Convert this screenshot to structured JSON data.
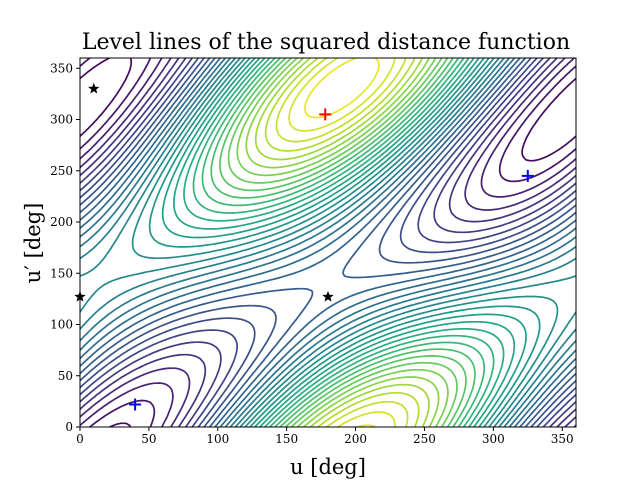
{
  "chart_data": {
    "type": "contour",
    "title": "Level lines of the squared distance function",
    "xlabel": "u [deg]",
    "ylabel": "u′ [deg]",
    "xlim": [
      0,
      360
    ],
    "ylim": [
      0,
      360
    ],
    "x_ticks": [
      "0",
      "50",
      "100",
      "150",
      "200",
      "250",
      "300",
      "350"
    ],
    "y_ticks": [
      "0",
      "50",
      "100",
      "150",
      "200",
      "250",
      "300",
      "350"
    ],
    "colormap": "viridis",
    "grid": false,
    "maxima": [
      {
        "x": 178,
        "y": 305,
        "marker": "plus",
        "color": "#ff0000"
      },
      {
        "x": 200,
        "y": 0,
        "marker": "none",
        "color": "#fde725"
      }
    ],
    "minima": [
      {
        "x": 40,
        "y": 22,
        "marker": "plus",
        "color": "#0000ff"
      },
      {
        "x": 325,
        "y": 245,
        "marker": "plus",
        "color": "#0000ff"
      }
    ],
    "saddles": [
      {
        "x": 180,
        "y": 127,
        "marker": "star",
        "color": "#000000"
      },
      {
        "x": 10,
        "y": 330,
        "marker": "star",
        "color": "#000000"
      },
      {
        "x": 0,
        "y": 127,
        "marker": "star",
        "color": "#000000"
      }
    ]
  }
}
